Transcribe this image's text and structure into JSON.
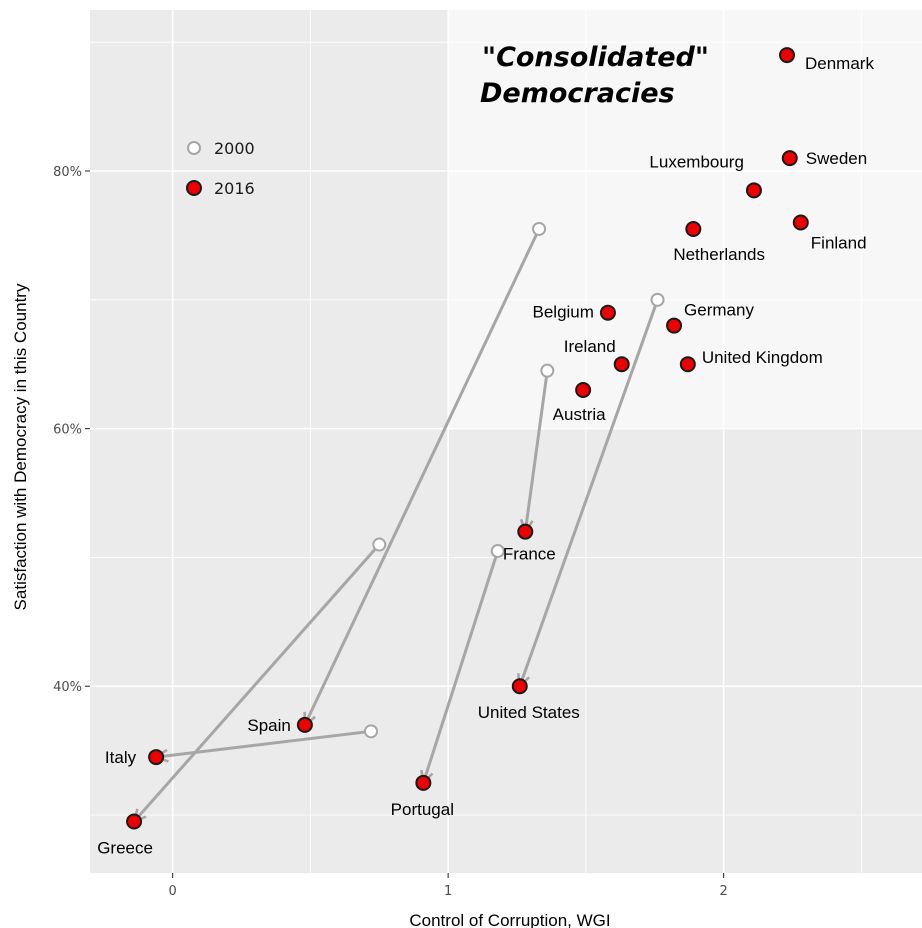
{
  "chart_data": {
    "type": "scatter",
    "xlabel": "Control of Corruption, WGI",
    "ylabel": "Satisfaction with Democracy in this Country",
    "xlim": [
      -0.3,
      2.72
    ],
    "ylim": [
      25.5,
      92.5
    ],
    "x_ticks": [
      0,
      1,
      2
    ],
    "x_tick_labels": [
      "0",
      "1",
      "2"
    ],
    "y_ticks": [
      40,
      60,
      80
    ],
    "y_tick_labels": [
      "40%",
      "60%",
      "80%"
    ],
    "grid": true,
    "legend": {
      "placement": "top-left",
      "items": [
        {
          "label": "2000",
          "fill": "#ffffff",
          "stroke": "#a6a6a6"
        },
        {
          "label": "2016",
          "fill": "#ee0000",
          "stroke": "#1a1a1a"
        }
      ]
    },
    "highlight_region": {
      "label_line1": "\"Consolidated\"",
      "label_line2": "Democracies",
      "x_from": 1.0,
      "y_from": 60
    },
    "series": [
      {
        "name": "2000",
        "points": [
          {
            "country": "Spain",
            "x": 1.33,
            "y": 75.5
          },
          {
            "country": "Italy",
            "x": 0.72,
            "y": 36.5
          },
          {
            "country": "Greece",
            "x": 0.75,
            "y": 51
          },
          {
            "country": "Portugal",
            "x": 1.18,
            "y": 50.5
          },
          {
            "country": "France",
            "x": 1.36,
            "y": 64.5
          },
          {
            "country": "United States",
            "x": 1.76,
            "y": 70
          }
        ]
      },
      {
        "name": "2016",
        "points": [
          {
            "country": "Denmark",
            "x": 2.23,
            "y": 89
          },
          {
            "country": "Sweden",
            "x": 2.24,
            "y": 81
          },
          {
            "country": "Luxembourg",
            "x": 2.11,
            "y": 78.5
          },
          {
            "country": "Finland",
            "x": 2.28,
            "y": 76
          },
          {
            "country": "Netherlands",
            "x": 1.89,
            "y": 75.5
          },
          {
            "country": "Belgium",
            "x": 1.58,
            "y": 69
          },
          {
            "country": "Germany",
            "x": 1.82,
            "y": 68
          },
          {
            "country": "Ireland",
            "x": 1.63,
            "y": 65
          },
          {
            "country": "United Kingdom",
            "x": 1.87,
            "y": 65
          },
          {
            "country": "Austria",
            "x": 1.49,
            "y": 63
          },
          {
            "country": "France",
            "x": 1.28,
            "y": 52
          },
          {
            "country": "United States",
            "x": 1.26,
            "y": 40
          },
          {
            "country": "Spain",
            "x": 0.48,
            "y": 37
          },
          {
            "country": "Italy",
            "x": -0.06,
            "y": 34.5
          },
          {
            "country": "Portugal",
            "x": 0.91,
            "y": 32.5
          },
          {
            "country": "Greece",
            "x": -0.14,
            "y": 29.5
          }
        ]
      }
    ],
    "arrows": [
      {
        "country": "Spain",
        "from": [
          1.33,
          75.5
        ],
        "to": [
          0.48,
          37
        ]
      },
      {
        "country": "Italy",
        "from": [
          0.72,
          36.5
        ],
        "to": [
          -0.06,
          34.5
        ]
      },
      {
        "country": "Greece",
        "from": [
          0.75,
          51
        ],
        "to": [
          -0.14,
          29.5
        ]
      },
      {
        "country": "Portugal",
        "from": [
          1.18,
          50.5
        ],
        "to": [
          0.91,
          32.5
        ]
      },
      {
        "country": "France",
        "from": [
          1.36,
          64.5
        ],
        "to": [
          1.28,
          52
        ]
      },
      {
        "country": "United States",
        "from": [
          1.76,
          70
        ],
        "to": [
          1.26,
          40
        ]
      }
    ]
  }
}
